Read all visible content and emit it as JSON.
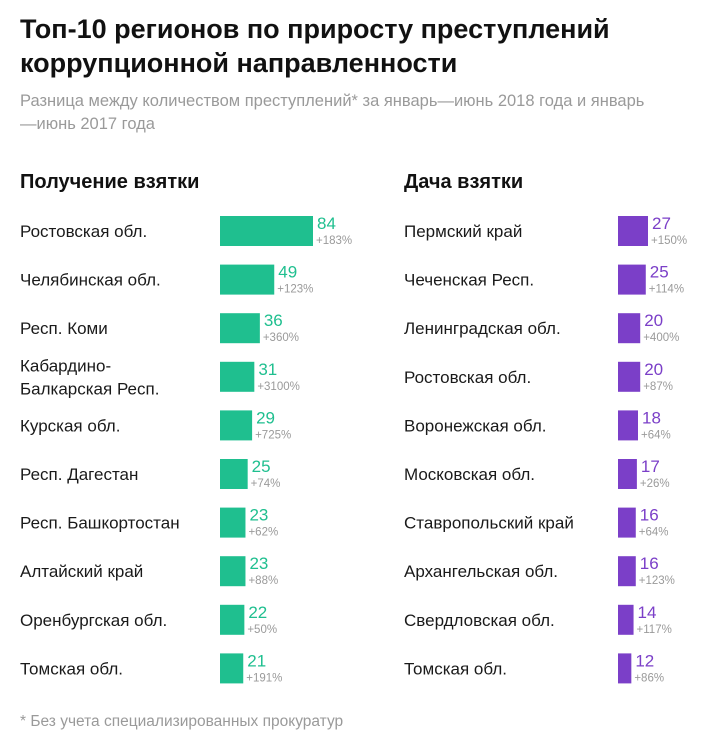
{
  "header": {
    "title": "Топ-10 регионов по приросту преступлений коррупционной направленности",
    "subtitle": "Разница между количеством преступлений* за январь—июнь 2018 года и январь—июнь 2017 года"
  },
  "footnote": "* Без учета специализированных прокуратур",
  "colors": {
    "left_bar": "#1fbf8f",
    "right_bar": "#7b3fc8",
    "label_text": "#1a1a1a",
    "muted_text": "#9a9a9a"
  },
  "chart_data": [
    {
      "type": "bar",
      "orientation": "horizontal",
      "title": "Получение взятки",
      "categories": [
        "Ростовская обл.",
        "Челябинская обл.",
        "Респ. Коми",
        "Кабардино-Балкарская Респ.",
        "Курская обл.",
        "Респ. Дагестан",
        "Респ. Башкортостан",
        "Алтайский край",
        "Оренбургская обл.",
        "Томская обл."
      ],
      "category_lines": [
        [
          "Ростовская обл."
        ],
        [
          "Челябинская обл."
        ],
        [
          "Респ. Коми"
        ],
        [
          "Кабардино-",
          "Балкарская Респ."
        ],
        [
          "Курская обл."
        ],
        [
          "Респ. Дагестан"
        ],
        [
          "Респ. Башкортостан"
        ],
        [
          "Алтайский край"
        ],
        [
          "Оренбургская обл."
        ],
        [
          "Томская обл."
        ]
      ],
      "values": [
        84,
        49,
        36,
        31,
        29,
        25,
        23,
        23,
        22,
        21
      ],
      "growth_labels": [
        "+183%",
        "+123%",
        "+360%",
        "+3100%",
        "+725%",
        "+74%",
        "+62%",
        "+88%",
        "+50%",
        "+191%"
      ]
    },
    {
      "type": "bar",
      "orientation": "horizontal",
      "title": "Дача взятки",
      "categories": [
        "Пермский край",
        "Чеченская Респ.",
        "Ленинградская обл.",
        "Ростовская обл.",
        "Воронежская обл.",
        "Московская обл.",
        "Ставропольский край",
        "Архангельская обл.",
        "Свердловская обл.",
        "Томская обл."
      ],
      "category_lines": [
        [
          "Пермский край"
        ],
        [
          "Чеченская Респ."
        ],
        [
          "Ленинградская обл."
        ],
        [
          "Ростовская обл."
        ],
        [
          "Воронежская обл."
        ],
        [
          "Московская обл."
        ],
        [
          "Ставропольский край"
        ],
        [
          "Архангельская обл."
        ],
        [
          "Свердловская обл."
        ],
        [
          "Томская обл."
        ]
      ],
      "values": [
        27,
        25,
        20,
        20,
        18,
        17,
        16,
        16,
        14,
        12
      ],
      "growth_labels": [
        "+150%",
        "+114%",
        "+400%",
        "+87%",
        "+64%",
        "+26%",
        "+64%",
        "+123%",
        "+117%",
        "+86%"
      ]
    }
  ]
}
